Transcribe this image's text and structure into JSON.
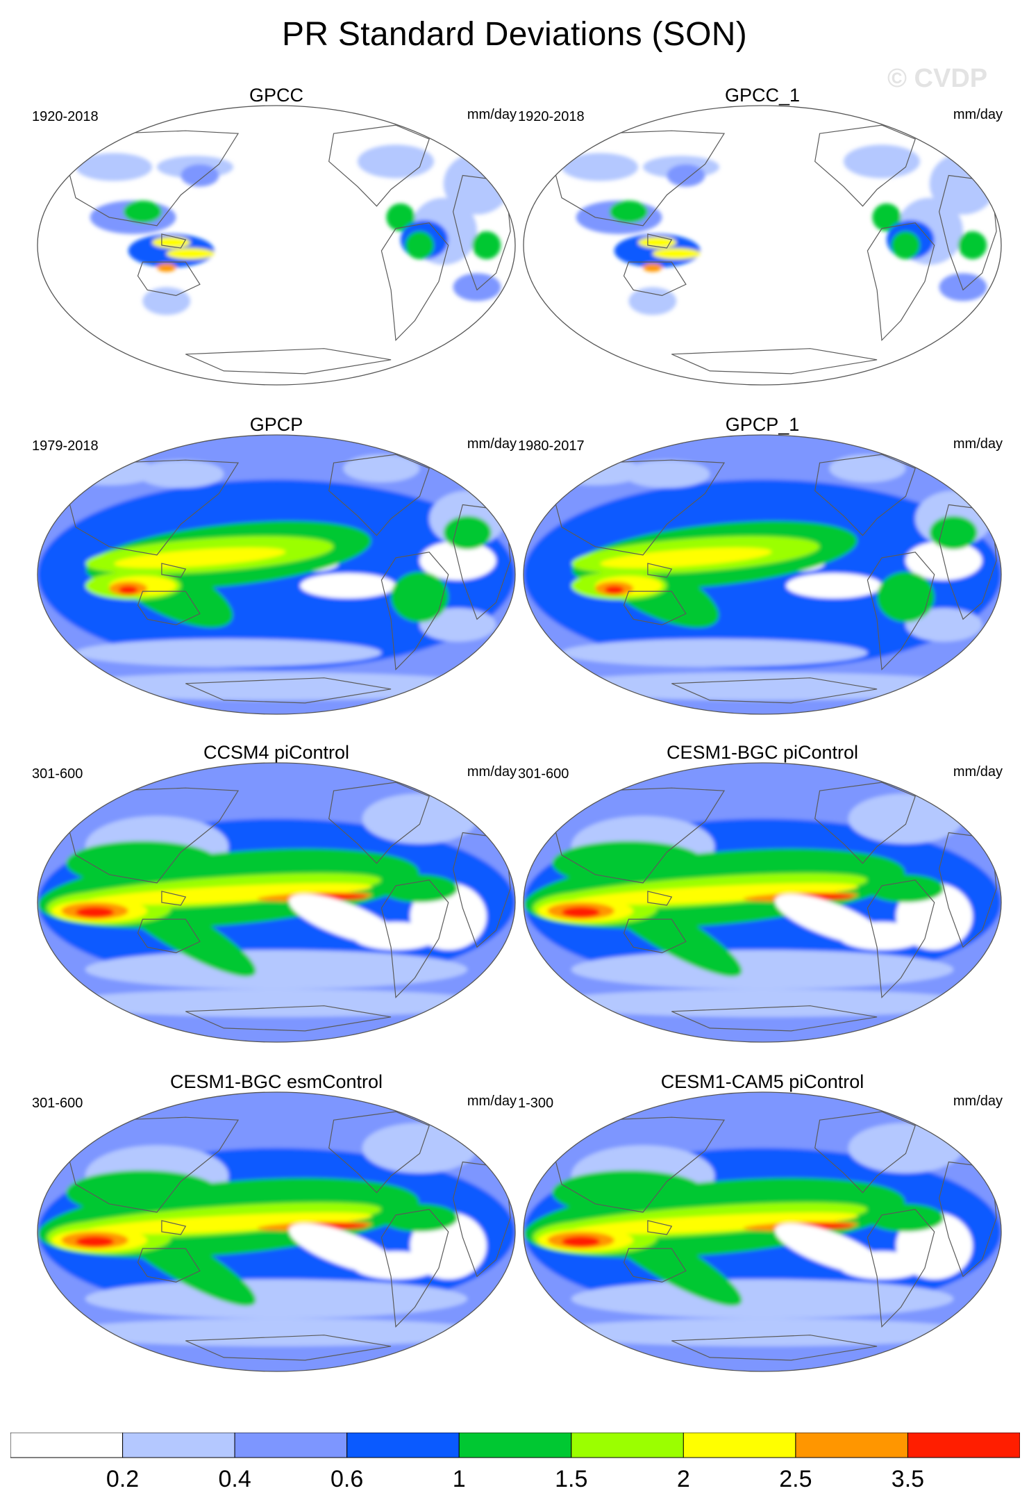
{
  "title": "PR Standard Deviations (SON)",
  "watermark": "© CVDP",
  "panels": [
    {
      "title": "GPCC",
      "years": "1920-2018",
      "units": "mm/day",
      "field": "land"
    },
    {
      "title": "GPCC_1",
      "years": "1920-2018",
      "units": "mm/day",
      "field": "land"
    },
    {
      "title": "GPCP",
      "years": "1979-2018",
      "units": "mm/day",
      "field": "obs"
    },
    {
      "title": "GPCP_1",
      "years": "1980-2017",
      "units": "mm/day",
      "field": "obs"
    },
    {
      "title": "CCSM4 piControl",
      "years": "301-600",
      "units": "mm/day",
      "field": "model"
    },
    {
      "title": "CESM1-BGC piControl",
      "years": "301-600",
      "units": "mm/day",
      "field": "model"
    },
    {
      "title": "CESM1-BGC esmControl",
      "years": "301-600",
      "units": "mm/day",
      "field": "model"
    },
    {
      "title": "CESM1-CAM5 piControl",
      "years": "1-300",
      "units": "mm/day",
      "field": "model"
    }
  ],
  "colorbar": {
    "labels": [
      "0.2",
      "0.4",
      "0.6",
      "1",
      "1.5",
      "2",
      "2.5",
      "3.5"
    ],
    "colors": [
      "#ffffff",
      "#b4c8ff",
      "#7d96ff",
      "#0a5aff",
      "#00c832",
      "#9bff00",
      "#ffff00",
      "#ff9600",
      "#ff1e00"
    ]
  }
}
